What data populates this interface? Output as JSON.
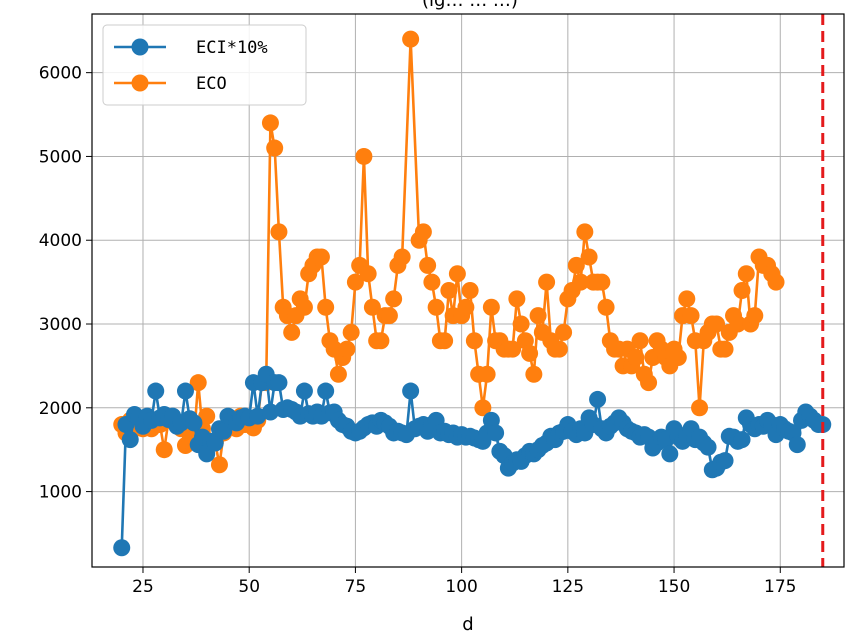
{
  "chart_data": {
    "type": "line",
    "title": "(ig… … …)",
    "xlabel": "d",
    "ylabel": "",
    "xlim": [
      13,
      190
    ],
    "ylim": [
      100,
      6700
    ],
    "xticks": [
      25,
      50,
      75,
      100,
      125,
      150,
      175
    ],
    "yticks": [
      1000,
      2000,
      3000,
      4000,
      5000,
      6000
    ],
    "grid": true,
    "legend_position": "top-left",
    "vline": {
      "x": 185,
      "color": "#e41a1c",
      "style": "dashed"
    },
    "series": [
      {
        "name": "ECI*10%",
        "color": "#1f77b4",
        "band": true,
        "points": [
          [
            20,
            330
          ],
          [
            21,
            1800
          ],
          [
            22,
            1620
          ],
          [
            23,
            1920
          ],
          [
            24,
            1880
          ],
          [
            25,
            1780
          ],
          [
            26,
            1900
          ],
          [
            27,
            1850
          ],
          [
            28,
            2200
          ],
          [
            29,
            1880
          ],
          [
            30,
            1920
          ],
          [
            31,
            1860
          ],
          [
            32,
            1900
          ],
          [
            33,
            1780
          ],
          [
            34,
            1820
          ],
          [
            35,
            2200
          ],
          [
            36,
            1870
          ],
          [
            37,
            1820
          ],
          [
            38,
            1560
          ],
          [
            39,
            1650
          ],
          [
            40,
            1450
          ],
          [
            41,
            1600
          ],
          [
            42,
            1580
          ],
          [
            43,
            1750
          ],
          [
            44,
            1720
          ],
          [
            45,
            1900
          ],
          [
            46,
            1850
          ],
          [
            47,
            1820
          ],
          [
            48,
            1880
          ],
          [
            49,
            1900
          ],
          [
            50,
            1880
          ],
          [
            51,
            2300
          ],
          [
            52,
            1900
          ],
          [
            53,
            2300
          ],
          [
            54,
            2400
          ],
          [
            55,
            1950
          ],
          [
            56,
            2300
          ],
          [
            57,
            2300
          ],
          [
            58,
            1980
          ],
          [
            59,
            2000
          ],
          [
            60,
            1980
          ],
          [
            61,
            1950
          ],
          [
            62,
            1900
          ],
          [
            63,
            2200
          ],
          [
            64,
            1930
          ],
          [
            65,
            1900
          ],
          [
            66,
            1950
          ],
          [
            67,
            1900
          ],
          [
            68,
            2200
          ],
          [
            69,
            1940
          ],
          [
            70,
            1950
          ],
          [
            71,
            1850
          ],
          [
            72,
            1800
          ],
          [
            73,
            1780
          ],
          [
            74,
            1720
          ],
          [
            75,
            1700
          ],
          [
            76,
            1720
          ],
          [
            77,
            1760
          ],
          [
            78,
            1800
          ],
          [
            79,
            1820
          ],
          [
            80,
            1780
          ],
          [
            81,
            1850
          ],
          [
            82,
            1820
          ],
          [
            83,
            1780
          ],
          [
            84,
            1700
          ],
          [
            85,
            1720
          ],
          [
            86,
            1700
          ],
          [
            87,
            1680
          ],
          [
            88,
            2200
          ],
          [
            89,
            1750
          ],
          [
            90,
            1780
          ],
          [
            91,
            1800
          ],
          [
            92,
            1720
          ],
          [
            93,
            1800
          ],
          [
            94,
            1850
          ],
          [
            95,
            1700
          ],
          [
            96,
            1720
          ],
          [
            97,
            1680
          ],
          [
            98,
            1700
          ],
          [
            99,
            1650
          ],
          [
            100,
            1680
          ],
          [
            101,
            1650
          ],
          [
            102,
            1660
          ],
          [
            103,
            1640
          ],
          [
            104,
            1620
          ],
          [
            105,
            1600
          ],
          [
            106,
            1700
          ],
          [
            107,
            1850
          ],
          [
            108,
            1700
          ],
          [
            109,
            1480
          ],
          [
            110,
            1430
          ],
          [
            111,
            1280
          ],
          [
            112,
            1340
          ],
          [
            113,
            1380
          ],
          [
            114,
            1360
          ],
          [
            115,
            1430
          ],
          [
            116,
            1480
          ],
          [
            117,
            1450
          ],
          [
            118,
            1500
          ],
          [
            119,
            1550
          ],
          [
            120,
            1580
          ],
          [
            121,
            1660
          ],
          [
            122,
            1620
          ],
          [
            123,
            1700
          ],
          [
            124,
            1720
          ],
          [
            125,
            1800
          ],
          [
            126,
            1720
          ],
          [
            127,
            1680
          ],
          [
            128,
            1750
          ],
          [
            129,
            1700
          ],
          [
            130,
            1880
          ],
          [
            131,
            1800
          ],
          [
            132,
            2100
          ],
          [
            133,
            1750
          ],
          [
            134,
            1700
          ],
          [
            135,
            1780
          ],
          [
            136,
            1820
          ],
          [
            137,
            1880
          ],
          [
            138,
            1820
          ],
          [
            139,
            1750
          ],
          [
            140,
            1720
          ],
          [
            141,
            1700
          ],
          [
            142,
            1650
          ],
          [
            143,
            1680
          ],
          [
            144,
            1650
          ],
          [
            145,
            1520
          ],
          [
            146,
            1580
          ],
          [
            147,
            1650
          ],
          [
            148,
            1620
          ],
          [
            149,
            1450
          ],
          [
            150,
            1750
          ],
          [
            151,
            1650
          ],
          [
            152,
            1600
          ],
          [
            153,
            1680
          ],
          [
            154,
            1750
          ],
          [
            155,
            1620
          ],
          [
            156,
            1650
          ],
          [
            157,
            1580
          ],
          [
            158,
            1530
          ],
          [
            159,
            1260
          ],
          [
            160,
            1280
          ],
          [
            161,
            1350
          ],
          [
            162,
            1370
          ],
          [
            163,
            1660
          ],
          [
            164,
            1650
          ],
          [
            165,
            1600
          ],
          [
            166,
            1620
          ],
          [
            167,
            1880
          ],
          [
            168,
            1800
          ],
          [
            169,
            1750
          ],
          [
            170,
            1800
          ],
          [
            171,
            1780
          ],
          [
            172,
            1850
          ],
          [
            173,
            1800
          ],
          [
            174,
            1680
          ],
          [
            175,
            1800
          ],
          [
            176,
            1750
          ],
          [
            177,
            1720
          ],
          [
            178,
            1700
          ],
          [
            179,
            1560
          ],
          [
            180,
            1850
          ],
          [
            181,
            1950
          ],
          [
            182,
            1900
          ],
          [
            183,
            1850
          ],
          [
            184,
            1800
          ],
          [
            185,
            1800
          ]
        ]
      },
      {
        "name": "ECO",
        "color": "#ff7f0e",
        "band": false,
        "points": [
          [
            20,
            1800
          ],
          [
            21,
            1700
          ],
          [
            22,
            1850
          ],
          [
            23,
            1750
          ],
          [
            24,
            1800
          ],
          [
            25,
            1750
          ],
          [
            26,
            1800
          ],
          [
            27,
            1750
          ],
          [
            28,
            1850
          ],
          [
            29,
            1800
          ],
          [
            30,
            1500
          ],
          [
            31,
            1850
          ],
          [
            34,
            1750
          ],
          [
            35,
            1550
          ],
          [
            36,
            1600
          ],
          [
            37,
            1650
          ],
          [
            38,
            2300
          ],
          [
            39,
            1750
          ],
          [
            40,
            1900
          ],
          [
            41,
            1600
          ],
          [
            42,
            1580
          ],
          [
            43,
            1320
          ],
          [
            44,
            1700
          ],
          [
            45,
            1800
          ],
          [
            46,
            1850
          ],
          [
            47,
            1750
          ],
          [
            48,
            1900
          ],
          [
            49,
            1800
          ],
          [
            50,
            1850
          ],
          [
            51,
            1760
          ],
          [
            52,
            1850
          ],
          [
            53,
            2300
          ],
          [
            54,
            2300
          ],
          [
            55,
            5400
          ],
          [
            56,
            5100
          ],
          [
            57,
            4100
          ],
          [
            58,
            3200
          ],
          [
            59,
            3100
          ],
          [
            60,
            2900
          ],
          [
            61,
            3100
          ],
          [
            62,
            3300
          ],
          [
            63,
            3200
          ],
          [
            64,
            3600
          ],
          [
            65,
            3700
          ],
          [
            66,
            3800
          ],
          [
            67,
            3800
          ],
          [
            68,
            3200
          ],
          [
            69,
            2800
          ],
          [
            70,
            2700
          ],
          [
            71,
            2400
          ],
          [
            72,
            2600
          ],
          [
            73,
            2700
          ],
          [
            74,
            2900
          ],
          [
            75,
            3500
          ],
          [
            76,
            3700
          ],
          [
            77,
            5000
          ],
          [
            78,
            3600
          ],
          [
            79,
            3200
          ],
          [
            80,
            2800
          ],
          [
            81,
            2800
          ],
          [
            82,
            3100
          ],
          [
            83,
            3100
          ],
          [
            84,
            3300
          ],
          [
            85,
            3700
          ],
          [
            86,
            3800
          ],
          [
            88,
            6400
          ],
          [
            90,
            4000
          ],
          [
            91,
            4100
          ],
          [
            92,
            3700
          ],
          [
            93,
            3500
          ],
          [
            94,
            3200
          ],
          [
            95,
            2800
          ],
          [
            96,
            2800
          ],
          [
            97,
            3400
          ],
          [
            98,
            3100
          ],
          [
            99,
            3600
          ],
          [
            100,
            3100
          ],
          [
            101,
            3200
          ],
          [
            102,
            3400
          ],
          [
            103,
            2800
          ],
          [
            104,
            2400
          ],
          [
            105,
            2000
          ],
          [
            106,
            2400
          ],
          [
            107,
            3200
          ],
          [
            108,
            2800
          ],
          [
            109,
            2800
          ],
          [
            110,
            2700
          ],
          [
            111,
            2700
          ],
          [
            112,
            2700
          ],
          [
            113,
            3300
          ],
          [
            114,
            3000
          ],
          [
            115,
            2800
          ],
          [
            116,
            2650
          ],
          [
            117,
            2400
          ],
          [
            118,
            3100
          ],
          [
            119,
            2900
          ],
          [
            120,
            3500
          ],
          [
            121,
            2800
          ],
          [
            122,
            2700
          ],
          [
            123,
            2700
          ],
          [
            124,
            2900
          ],
          [
            125,
            3300
          ],
          [
            126,
            3400
          ],
          [
            127,
            3700
          ],
          [
            128,
            3500
          ],
          [
            129,
            4100
          ],
          [
            130,
            3800
          ],
          [
            131,
            3500
          ],
          [
            132,
            3500
          ],
          [
            133,
            3500
          ],
          [
            134,
            3200
          ],
          [
            135,
            2800
          ],
          [
            136,
            2700
          ],
          [
            137,
            2700
          ],
          [
            138,
            2500
          ],
          [
            139,
            2700
          ],
          [
            140,
            2500
          ],
          [
            141,
            2600
          ],
          [
            142,
            2800
          ],
          [
            143,
            2400
          ],
          [
            144,
            2300
          ],
          [
            145,
            2600
          ],
          [
            146,
            2800
          ],
          [
            147,
            2700
          ],
          [
            148,
            2600
          ],
          [
            149,
            2500
          ],
          [
            150,
            2700
          ],
          [
            151,
            2600
          ],
          [
            152,
            3100
          ],
          [
            153,
            3300
          ],
          [
            154,
            3100
          ],
          [
            155,
            2800
          ],
          [
            156,
            2000
          ],
          [
            157,
            2800
          ],
          [
            158,
            2900
          ],
          [
            159,
            3000
          ],
          [
            160,
            3000
          ],
          [
            161,
            2700
          ],
          [
            162,
            2700
          ],
          [
            163,
            2900
          ],
          [
            164,
            3100
          ],
          [
            165,
            3000
          ],
          [
            166,
            3400
          ],
          [
            167,
            3600
          ],
          [
            168,
            3000
          ],
          [
            169,
            3100
          ],
          [
            170,
            3800
          ],
          [
            171,
            3700
          ],
          [
            172,
            3700
          ],
          [
            173,
            3600
          ],
          [
            174,
            3500
          ]
        ]
      }
    ]
  }
}
